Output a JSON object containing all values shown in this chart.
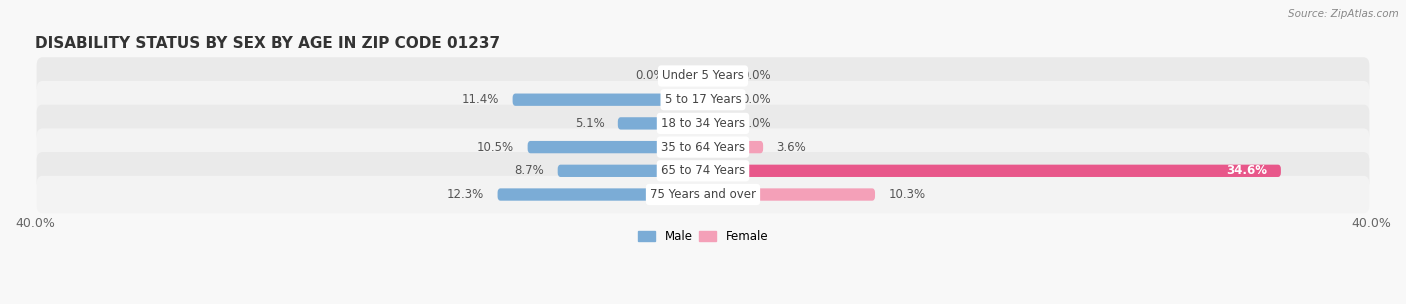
{
  "title": "DISABILITY STATUS BY SEX BY AGE IN ZIP CODE 01237",
  "source": "Source: ZipAtlas.com",
  "categories": [
    "Under 5 Years",
    "5 to 17 Years",
    "18 to 34 Years",
    "35 to 64 Years",
    "65 to 74 Years",
    "75 Years and over"
  ],
  "male_values": [
    0.0,
    11.4,
    5.1,
    10.5,
    8.7,
    12.3
  ],
  "female_values": [
    0.0,
    0.0,
    0.0,
    3.6,
    34.6,
    10.3
  ],
  "male_label_values": [
    "0.0%",
    "11.4%",
    "5.1%",
    "10.5%",
    "8.7%",
    "12.3%"
  ],
  "female_label_values": [
    "0.0%",
    "0.0%",
    "0.0%",
    "3.6%",
    "34.6%",
    "10.3%"
  ],
  "xlim": 40.0,
  "male_color": "#7bacd6",
  "female_color_normal": "#f4a0b8",
  "female_color_large": "#e8578a",
  "male_label": "Male",
  "female_label": "Female",
  "bar_height": 0.52,
  "row_bg_color": "#eaeaea",
  "row_alt_bg_color": "#f3f3f3",
  "fig_bg_color": "#f8f8f8",
  "title_fontsize": 11,
  "label_fontsize": 8.5,
  "tick_fontsize": 9,
  "value_fontsize": 8.5,
  "zero_stub": 1.5,
  "large_female_threshold": 20.0
}
